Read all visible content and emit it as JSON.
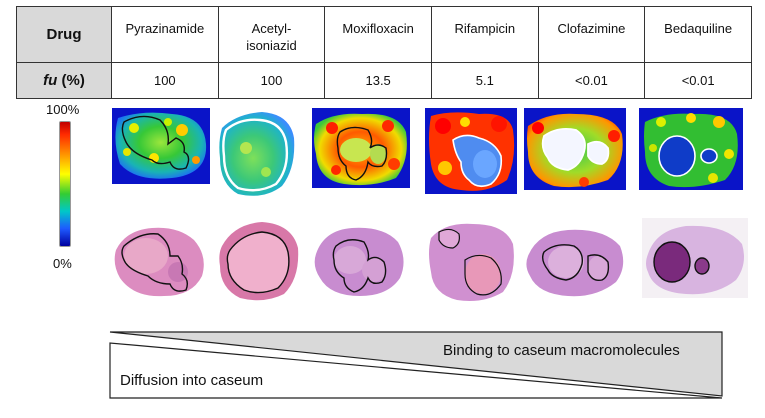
{
  "table": {
    "header_drug": "Drug",
    "header_fu_italic": "fu",
    "header_fu_rest": " (%)",
    "drugs": [
      {
        "name_line1": "Pyrazinamide",
        "name_line2": "",
        "fu": "100"
      },
      {
        "name_line1": "Acetyl-",
        "name_line2": "isoniazid",
        "fu": "100"
      },
      {
        "name_line1": "Moxifloxacin",
        "name_line2": "",
        "fu": "13.5"
      },
      {
        "name_line1": "Rifampicin",
        "name_line2": "",
        "fu": "5.1"
      },
      {
        "name_line1": "Clofazimine",
        "name_line2": "",
        "fu": "<0.01"
      },
      {
        "name_line1": "Bedaquiline",
        "name_line2": "",
        "fu": "<0.01"
      }
    ]
  },
  "scale": {
    "max_label": "100%",
    "min_label": "0%"
  },
  "wedge": {
    "binding_label": "Binding to caseum macromolecules",
    "diffusion_label": "Diffusion into caseum"
  }
}
